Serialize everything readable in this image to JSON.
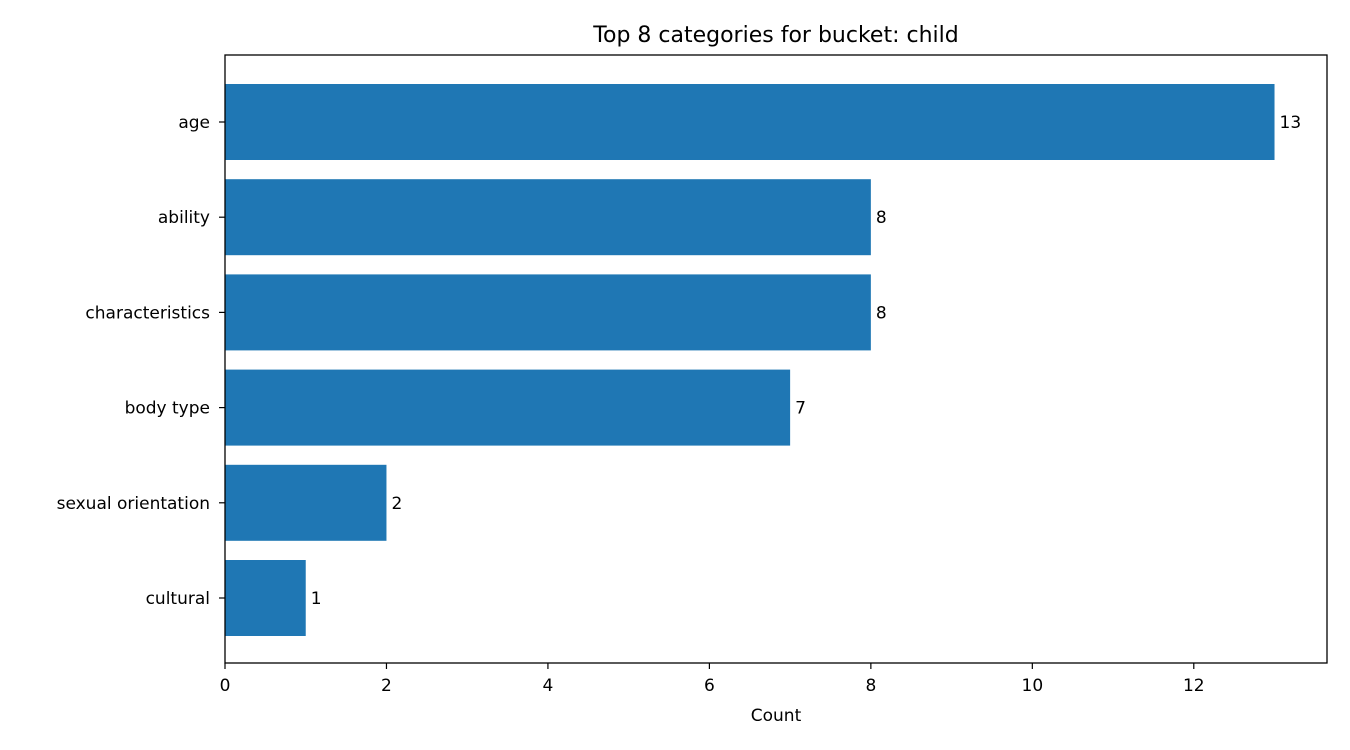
{
  "chart_data": {
    "type": "bar",
    "orientation": "horizontal",
    "title": "Top 8 categories for bucket: child",
    "xlabel": "Count",
    "ylabel": "",
    "categories": [
      "age",
      "ability",
      "characteristics",
      "body type",
      "sexual orientation",
      "cultural"
    ],
    "values": [
      13,
      8,
      8,
      7,
      2,
      1
    ],
    "data_labels": [
      "13",
      "8",
      "8",
      "7",
      "2",
      "1"
    ],
    "xlim": [
      0,
      13.65
    ],
    "xticks": [
      0,
      2,
      4,
      6,
      8,
      10,
      12
    ],
    "xtick_labels": [
      "0",
      "2",
      "4",
      "6",
      "8",
      "10",
      "12"
    ],
    "grid": false,
    "colors": {
      "bar": "#1f77b4",
      "axes": "#000000"
    }
  }
}
